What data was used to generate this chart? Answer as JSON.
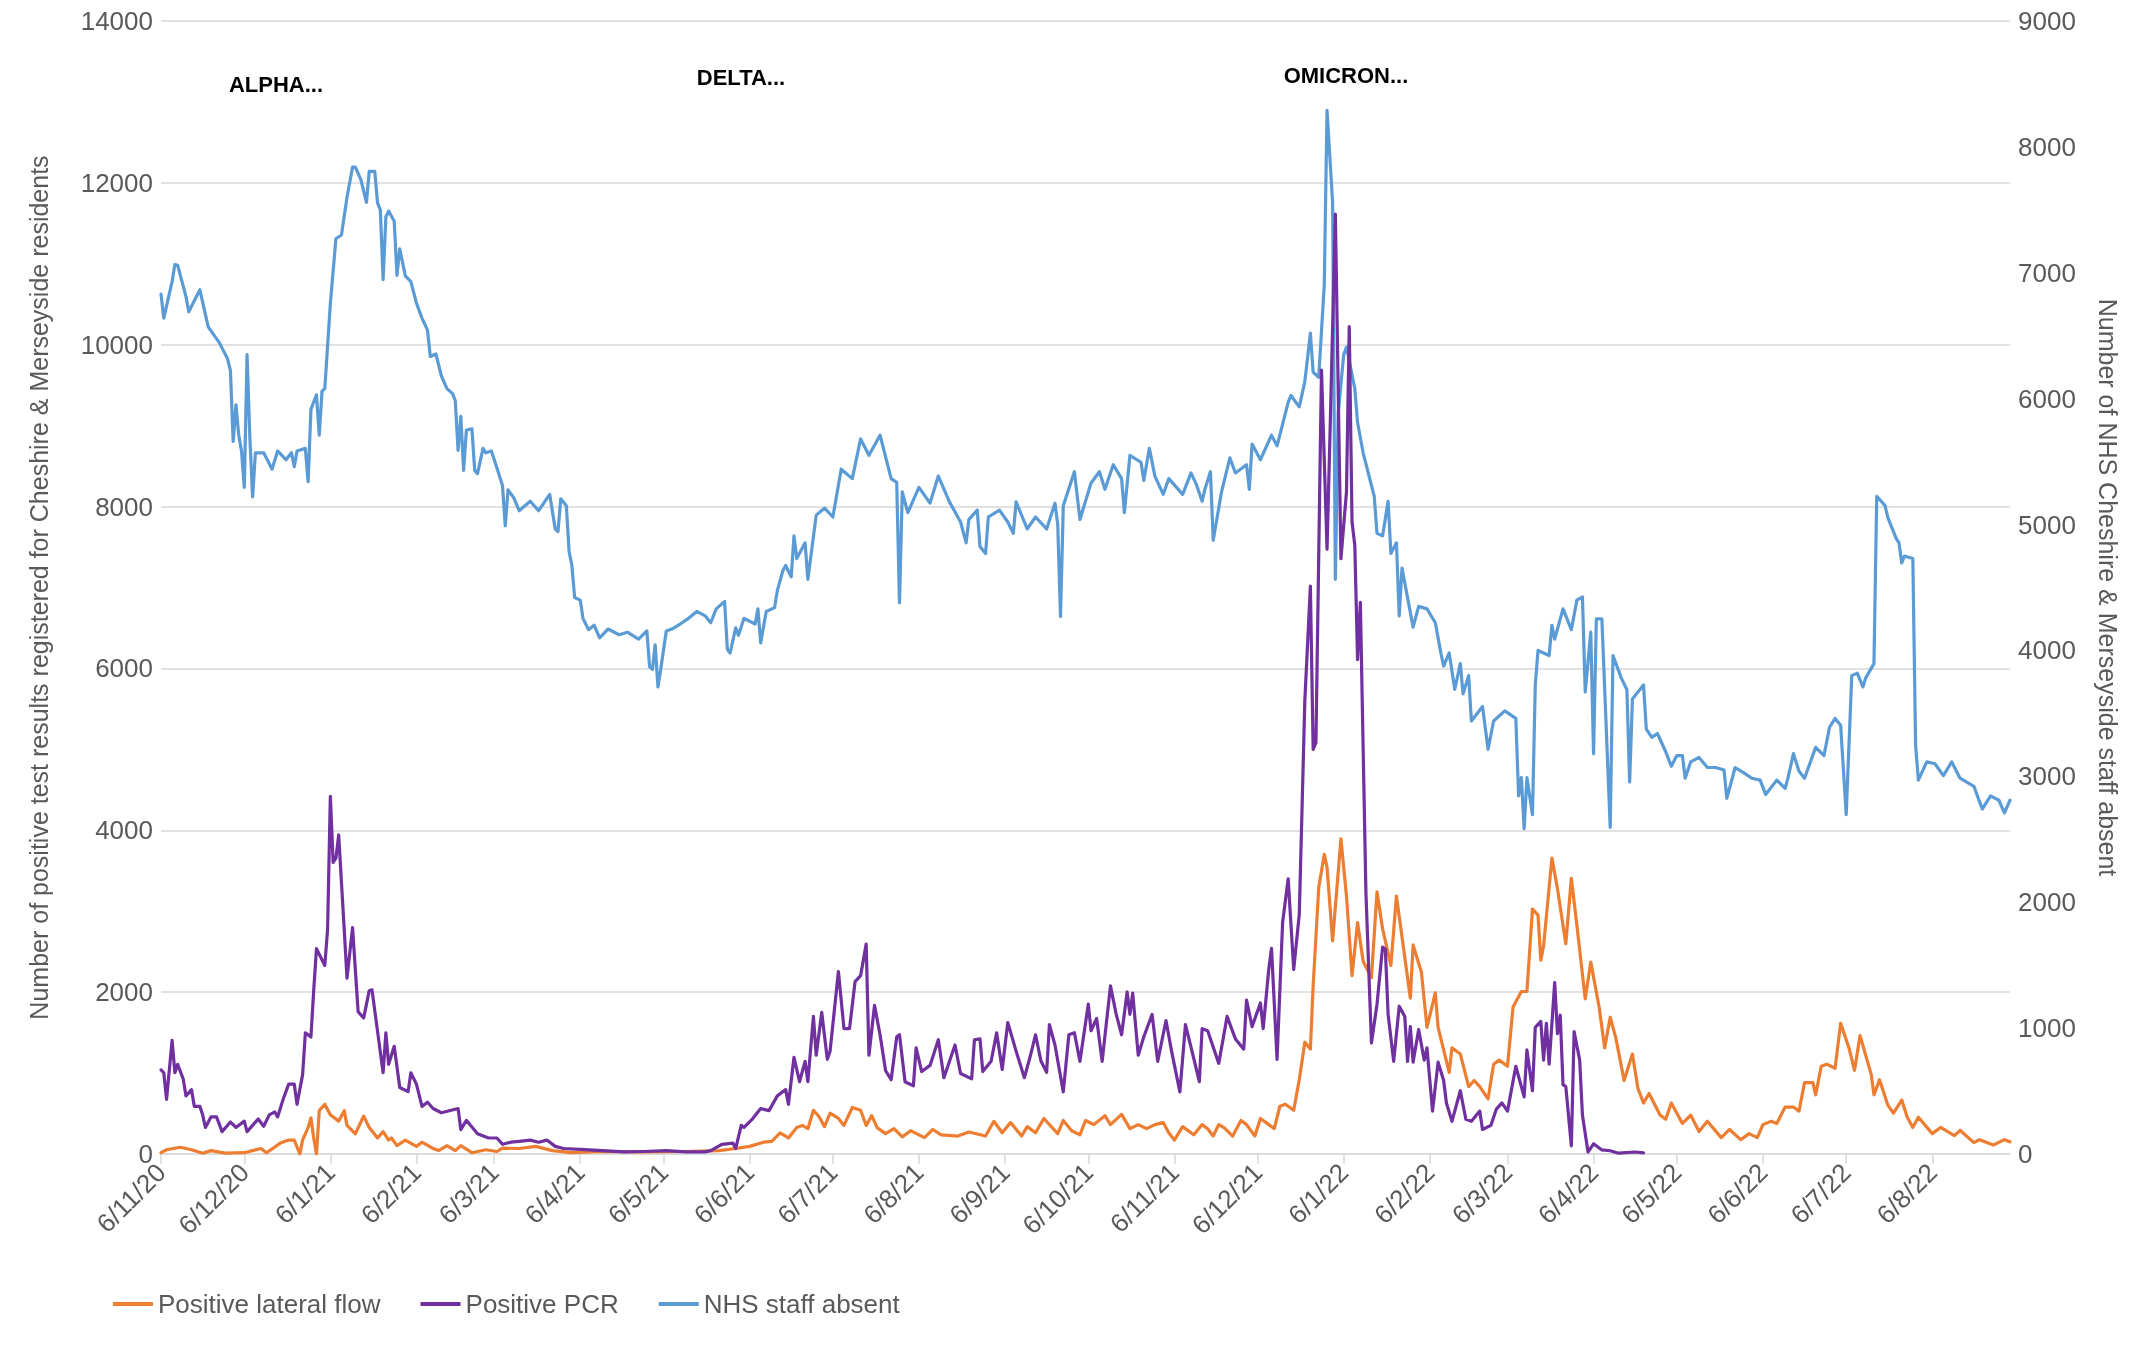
{
  "chart_data": {
    "type": "line",
    "ylabel": "Number of positive test results registered for Cheshire & Merseyside residents",
    "y2label": "Number of NHS Cheshire & Merseyside staff absent",
    "xlim": [
      "2020-11-06",
      "2022-09-03"
    ],
    "xticks": [
      {
        "value": "2020-11-06",
        "label": "6/11/20"
      },
      {
        "value": "2020-12-06",
        "label": "6/12/20"
      },
      {
        "value": "2021-01-06",
        "label": "6/1/21"
      },
      {
        "value": "2021-02-06",
        "label": "6/2/21"
      },
      {
        "value": "2021-03-06",
        "label": "6/3/21"
      },
      {
        "value": "2021-04-06",
        "label": "6/4/21"
      },
      {
        "value": "2021-05-06",
        "label": "6/5/21"
      },
      {
        "value": "2021-06-06",
        "label": "6/6/21"
      },
      {
        "value": "2021-07-06",
        "label": "6/7/21"
      },
      {
        "value": "2021-08-06",
        "label": "6/8/21"
      },
      {
        "value": "2021-09-06",
        "label": "6/9/21"
      },
      {
        "value": "2021-10-06",
        "label": "6/10/21"
      },
      {
        "value": "2021-11-06",
        "label": "6/11/21"
      },
      {
        "value": "2021-12-06",
        "label": "6/12/21"
      },
      {
        "value": "2022-01-06",
        "label": "6/1/22"
      },
      {
        "value": "2022-02-06",
        "label": "6/2/22"
      },
      {
        "value": "2022-03-06",
        "label": "6/3/22"
      },
      {
        "value": "2022-04-06",
        "label": "6/4/22"
      },
      {
        "value": "2022-05-06",
        "label": "6/5/22"
      },
      {
        "value": "2022-06-06",
        "label": "6/6/22"
      },
      {
        "value": "2022-07-06",
        "label": "6/7/22"
      },
      {
        "value": "2022-08-06",
        "label": "6/8/22"
      }
    ],
    "ylim": [
      0,
      14000
    ],
    "yticks": [
      0,
      2000,
      4000,
      6000,
      8000,
      10000,
      12000,
      14000
    ],
    "y2lim": [
      0,
      9000
    ],
    "y2ticks": [
      0,
      1000,
      2000,
      3000,
      4000,
      5000,
      6000,
      7000,
      8000,
      9000
    ],
    "grid": "y",
    "legend": "bottom left",
    "annotations": [
      "ALPHA...",
      "DELTA...",
      "OMICRON..."
    ],
    "series": [
      {
        "name": "Positive lateral flow",
        "color": "#ed7d31",
        "x": [
          "2020-11-06",
          "2020-11-08",
          "2020-11-13",
          "2020-11-17",
          "2020-11-21",
          "2020-11-24",
          "2020-11-29",
          "2020-12-06",
          "2020-12-12",
          "2020-12-14",
          "2020-12-19",
          "2020-12-22",
          "2020-12-24",
          "2020-12-26",
          "2020-12-27",
          "2020-12-29",
          "2020-12-30",
          "2020-12-31",
          "2021-01-01",
          "2021-01-02",
          "2021-01-04",
          "2021-01-06",
          "2021-01-09",
          "2021-01-11",
          "2021-01-12",
          "2021-01-15",
          "2021-01-18",
          "2021-01-20",
          "2021-01-23",
          "2021-01-25",
          "2021-01-27",
          "2021-01-28",
          "2021-01-30",
          "2021-02-02",
          "2021-02-06",
          "2021-02-08",
          "2021-02-12",
          "2021-02-14",
          "2021-02-17",
          "2021-02-20",
          "2021-02-22",
          "2021-02-26",
          "2021-03-03",
          "2021-03-07",
          "2021-03-09",
          "2021-03-15",
          "2021-03-21",
          "2021-03-27",
          "2021-04-03",
          "2021-04-14",
          "2021-04-29",
          "2021-05-14",
          "2021-05-26",
          "2021-06-01",
          "2021-06-06",
          "2021-06-11",
          "2021-06-14",
          "2021-06-17",
          "2021-06-20",
          "2021-06-23",
          "2021-06-25",
          "2021-06-27",
          "2021-06-29",
          "2021-07-01",
          "2021-07-03",
          "2021-07-05",
          "2021-07-08",
          "2021-07-10",
          "2021-07-13",
          "2021-07-16",
          "2021-07-18",
          "2021-07-20",
          "2021-07-22",
          "2021-07-25",
          "2021-07-28",
          "2021-07-31",
          "2021-08-03",
          "2021-08-08",
          "2021-08-11",
          "2021-08-14",
          "2021-08-20",
          "2021-08-24",
          "2021-08-30",
          "2021-09-02",
          "2021-09-05",
          "2021-09-08",
          "2021-09-12",
          "2021-09-14",
          "2021-09-17",
          "2021-09-20",
          "2021-09-25",
          "2021-09-27",
          "2021-09-30",
          "2021-10-03",
          "2021-10-05",
          "2021-10-08",
          "2021-10-12",
          "2021-10-14",
          "2021-10-18",
          "2021-10-21",
          "2021-10-24",
          "2021-10-27",
          "2021-10-30",
          "2021-11-02",
          "2021-11-04",
          "2021-11-06",
          "2021-11-09",
          "2021-11-13",
          "2021-11-16",
          "2021-11-18",
          "2021-11-20",
          "2021-11-22",
          "2021-11-24",
          "2021-11-27",
          "2021-11-30",
          "2021-12-02",
          "2021-12-05",
          "2021-12-07",
          "2021-12-10",
          "2021-12-12",
          "2021-12-14",
          "2021-12-16",
          "2021-12-19",
          "2021-12-21",
          "2021-12-23",
          "2021-12-25",
          "2021-12-26",
          "2021-12-28",
          "2021-12-30",
          "2021-12-31",
          "2022-01-02",
          "2022-01-05",
          "2022-01-07",
          "2022-01-09",
          "2022-01-11",
          "2022-01-13",
          "2022-01-16",
          "2022-01-18",
          "2022-01-20",
          "2022-01-23",
          "2022-01-25",
          "2022-01-27",
          "2022-01-30",
          "2022-01-31",
          "2022-02-03",
          "2022-02-05",
          "2022-02-08",
          "2022-02-09",
          "2022-02-13",
          "2022-02-14",
          "2022-02-17",
          "2022-02-20",
          "2022-02-22",
          "2022-02-24",
          "2022-02-27",
          "2022-03-01",
          "2022-03-03",
          "2022-03-06",
          "2022-03-08",
          "2022-03-11",
          "2022-03-13",
          "2022-03-15",
          "2022-03-17",
          "2022-03-18",
          "2022-03-19",
          "2022-03-22",
          "2022-03-24",
          "2022-03-27",
          "2022-03-29",
          "2022-03-31",
          "2022-04-03",
          "2022-04-05",
          "2022-04-08",
          "2022-04-10",
          "2022-04-12",
          "2022-04-14",
          "2022-04-17",
          "2022-04-20",
          "2022-04-22",
          "2022-04-24",
          "2022-04-26",
          "2022-04-30",
          "2022-05-02",
          "2022-05-04",
          "2022-05-08",
          "2022-05-11",
          "2022-05-14",
          "2022-05-17",
          "2022-05-22",
          "2022-05-25",
          "2022-05-29",
          "2022-06-01",
          "2022-06-04",
          "2022-06-06",
          "2022-06-09",
          "2022-06-11",
          "2022-06-14",
          "2022-06-17",
          "2022-06-19",
          "2022-06-21",
          "2022-06-24",
          "2022-06-25",
          "2022-06-27",
          "2022-06-29",
          "2022-07-02",
          "2022-07-04",
          "2022-07-07",
          "2022-07-09",
          "2022-07-11",
          "2022-07-15",
          "2022-07-16",
          "2022-07-18",
          "2022-07-21",
          "2022-07-23",
          "2022-07-26",
          "2022-07-28",
          "2022-07-30",
          "2022-08-01",
          "2022-08-06",
          "2022-08-09",
          "2022-08-14",
          "2022-08-16",
          "2022-08-21",
          "2022-08-23",
          "2022-08-28",
          "2022-09-01",
          "2022-09-03"
        ],
        "values": [
          16,
          52,
          83,
          52,
          10,
          42,
          10,
          16,
          68,
          16,
          135,
          172,
          172,
          0,
          172,
          328,
          447,
          198,
          0,
          536,
          614,
          484,
          406,
          536,
          354,
          250,
          468,
          328,
          198,
          276,
          172,
          198,
          104,
          172,
          94,
          146,
          68,
          42,
          104,
          42,
          104,
          16,
          52,
          31,
          73,
          68,
          94,
          42,
          16,
          31,
          26,
          31,
          42,
          68,
          94,
          146,
          156,
          260,
          198,
          328,
          353,
          313,
          540,
          464,
          338,
          504,
          439,
          353,
          575,
          540,
          353,
          474,
          323,
          252,
          313,
          212,
          288,
          202,
          303,
          237,
          222,
          272,
          222,
          404,
          262,
          388,
          222,
          338,
          262,
          439,
          252,
          414,
          288,
          237,
          414,
          363,
          474,
          363,
          489,
          313,
          363,
          313,
          363,
          388,
          262,
          171,
          338,
          237,
          363,
          313,
          222,
          363,
          323,
          222,
          414,
          363,
          222,
          439,
          363,
          313,
          590,
          615,
          540,
          918,
          1382,
          1296,
          2078,
          3289,
          3702,
          3541,
          2633,
          3894,
          3188,
          2204,
          2860,
          2381,
          2179,
          3238,
          2784,
          2330,
          3188,
          2683,
          1927,
          2583,
          2245,
          1564,
          1992,
          1564,
          1009,
          1311,
          1236,
          832,
          908,
          832,
          681,
          1110,
          1160,
          1084,
          1816,
          2008,
          2008,
          3026,
          2951,
          2396,
          2572,
          3657,
          3279,
          2598,
          3405,
          2825,
          1917,
          2371,
          1816,
          1311,
          1690,
          1438,
          908,
          1236,
          807,
          630,
          747,
          479,
          429,
          630,
          378,
          479,
          277,
          404,
          202,
          303,
          177,
          252,
          202,
          363,
          404,
          378,
          580,
          580,
          530,
          883,
          883,
          731,
          1084,
          1110,
          1059,
          1614,
          1311,
          1034,
          1463,
          984,
          731,
          918,
          605,
          504,
          666,
          454,
          328,
          454,
          252,
          328,
          227,
          293,
          141,
          177,
          111,
          177,
          151
        ]
      },
      {
        "name": "Positive PCR",
        "color": "#7030a0",
        "x": [
          "2020-11-06",
          "2020-11-07",
          "2020-11-08",
          "2020-11-10",
          "2020-11-11",
          "2020-11-12",
          "2020-11-14",
          "2020-11-15",
          "2020-11-17",
          "2020-11-18",
          "2020-11-20",
          "2020-11-21",
          "2020-11-22",
          "2020-11-24",
          "2020-11-26",
          "2020-11-28",
          "2020-12-01",
          "2020-12-03",
          "2020-12-06",
          "2020-12-07",
          "2020-12-09",
          "2020-12-11",
          "2020-12-13",
          "2020-12-15",
          "2020-12-17",
          "2020-12-18",
          "2020-12-20",
          "2020-12-22",
          "2020-12-24",
          "2020-12-25",
          "2020-12-27",
          "2020-12-28",
          "2020-12-30",
          "2020-12-31",
          "2021-01-01",
          "2021-01-04",
          "2021-01-05",
          "2021-01-06",
          "2021-01-07",
          "2021-01-08",
          "2021-01-09",
          "2021-01-11",
          "2021-01-12",
          "2021-01-14",
          "2021-01-16",
          "2021-01-18",
          "2021-01-20",
          "2021-01-21",
          "2021-01-25",
          "2021-01-26",
          "2021-01-27",
          "2021-01-29",
          "2021-01-31",
          "2021-02-03",
          "2021-02-04",
          "2021-02-06",
          "2021-02-08",
          "2021-02-10",
          "2021-02-12",
          "2021-02-15",
          "2021-02-21",
          "2021-02-22",
          "2021-02-24",
          "2021-02-28",
          "2021-03-04",
          "2021-03-07",
          "2021-03-09",
          "2021-03-12",
          "2021-03-15",
          "2021-03-19",
          "2021-03-22",
          "2021-03-25",
          "2021-03-28",
          "2021-03-31",
          "2021-04-06",
          "2021-04-14",
          "2021-04-22",
          "2021-04-29",
          "2021-05-07",
          "2021-05-14",
          "2021-05-21",
          "2021-05-23",
          "2021-05-27",
          "2021-05-31",
          "2021-06-01",
          "2021-06-03",
          "2021-06-04",
          "2021-06-07",
          "2021-06-10",
          "2021-06-13",
          "2021-06-16",
          "2021-06-19",
          "2021-06-20",
          "2021-06-22",
          "2021-06-24",
          "2021-06-26",
          "2021-06-27",
          "2021-06-29",
          "2021-06-30",
          "2021-07-02",
          "2021-07-04",
          "2021-07-05",
          "2021-07-08",
          "2021-07-10",
          "2021-07-12",
          "2021-07-14",
          "2021-07-16",
          "2021-07-18",
          "2021-07-19",
          "2021-07-21",
          "2021-07-23",
          "2021-07-25",
          "2021-07-27",
          "2021-07-29",
          "2021-07-30",
          "2021-08-01",
          "2021-08-04",
          "2021-08-05",
          "2021-08-07",
          "2021-08-10",
          "2021-08-13",
          "2021-08-15",
          "2021-08-19",
          "2021-08-21",
          "2021-08-25",
          "2021-08-26",
          "2021-08-28",
          "2021-08-29",
          "2021-09-01",
          "2021-09-03",
          "2021-09-05",
          "2021-09-07",
          "2021-09-10",
          "2021-09-13",
          "2021-09-15",
          "2021-09-17",
          "2021-09-19",
          "2021-09-21",
          "2021-09-22",
          "2021-09-24",
          "2021-09-27",
          "2021-09-29",
          "2021-10-01",
          "2021-10-03",
          "2021-10-06",
          "2021-10-07",
          "2021-10-09",
          "2021-10-11",
          "2021-10-14",
          "2021-10-16",
          "2021-10-18",
          "2021-10-20",
          "2021-10-21",
          "2021-10-22",
          "2021-10-24",
          "2021-10-26",
          "2021-10-29",
          "2021-10-31",
          "2021-11-03",
          "2021-11-05",
          "2021-11-08",
          "2021-11-10",
          "2021-11-12",
          "2021-11-15",
          "2021-11-16",
          "2021-11-18",
          "2021-11-22",
          "2021-11-25",
          "2021-11-28",
          "2021-12-01",
          "2021-12-02",
          "2021-12-04",
          "2021-12-07",
          "2021-12-08",
          "2021-12-10",
          "2021-12-11",
          "2021-12-13",
          "2021-12-15",
          "2021-12-17",
          "2021-12-19",
          "2021-12-21",
          "2021-12-22",
          "2021-12-23",
          "2021-12-25",
          "2021-12-26",
          "2021-12-27",
          "2021-12-29",
          "2021-12-31",
          "2022-01-01",
          "2022-01-03",
          "2022-01-05",
          "2022-01-07",
          "2022-01-08",
          "2022-01-09",
          "2022-01-10",
          "2022-01-11",
          "2022-01-12",
          "2022-01-14",
          "2022-01-16",
          "2022-01-18",
          "2022-01-20",
          "2022-01-21",
          "2022-01-22",
          "2022-01-24",
          "2022-01-26",
          "2022-01-28",
          "2022-01-29",
          "2022-01-30",
          "2022-01-31",
          "2022-02-02",
          "2022-02-04",
          "2022-02-05",
          "2022-02-07",
          "2022-02-09",
          "2022-02-11",
          "2022-02-12",
          "2022-02-14",
          "2022-02-17",
          "2022-02-19",
          "2022-02-21",
          "2022-02-24",
          "2022-02-25",
          "2022-02-28",
          "2022-03-02",
          "2022-03-04",
          "2022-03-06",
          "2022-03-09",
          "2022-03-10",
          "2022-03-12",
          "2022-03-13",
          "2022-03-15",
          "2022-03-16",
          "2022-03-18",
          "2022-03-19",
          "2022-03-20",
          "2022-03-21",
          "2022-03-23",
          "2022-03-24",
          "2022-03-25",
          "2022-03-26",
          "2022-03-27",
          "2022-03-29",
          "2022-03-30",
          "2022-04-01",
          "2022-04-02",
          "2022-04-04",
          "2022-04-06",
          "2022-04-09",
          "2022-04-12",
          "2022-04-15",
          "2022-04-21",
          "2022-04-24"
        ],
        "values": [
          1040,
          1004,
          676,
          1404,
          1004,
          1108,
          926,
          718,
          796,
          588,
          588,
          484,
          328,
          458,
          458,
          276,
          395,
          328,
          406,
          276,
          354,
          432,
          343,
          484,
          520,
          458,
          676,
          863,
          863,
          614,
          978,
          1498,
          1446,
          2018,
          2538,
          2330,
          2772,
          4420,
          3604,
          3656,
          3942,
          2772,
          2174,
          2798,
          1758,
          1680,
          2018,
          2028,
          1004,
          1498,
          1108,
          1331,
          822,
          770,
          1004,
          863,
          588,
          640,
          562,
          510,
          562,
          302,
          416,
          250,
          198,
          198,
          120,
          146,
          156,
          172,
          146,
          172,
          94,
          68,
          57,
          42,
          26,
          31,
          42,
          26,
          26,
          42,
          120,
          135,
          68,
          354,
          328,
          432,
          562,
          536,
          718,
          796,
          614,
          1195,
          893,
          1145,
          893,
          1700,
          1220,
          1750,
          1170,
          1271,
          2255,
          1549,
          1549,
          2129,
          2204,
          2593,
          1220,
          1836,
          1473,
          1029,
          918,
          1448,
          1473,
          893,
          842,
          1311,
          1019,
          1095,
          1412,
          943,
          1347,
          994,
          928,
          1412,
          1422,
          1019,
          1145,
          1498,
          1044,
          1624,
          1271,
          943,
          1195,
          1473,
          1145,
          1009,
          1599,
          1347,
          767,
          1473,
          1498,
          1145,
          1851,
          1523,
          1675,
          1145,
          2078,
          1735,
          1473,
          2002,
          1725,
          1987,
          1220,
          1448,
          1725,
          1145,
          1649,
          1271,
          767,
          1599,
          1321,
          893,
          1549,
          1523,
          1120,
          1700,
          1422,
          1296,
          1902,
          1574,
          1866,
          1549,
          2280,
          2542,
          1170,
          2860,
          3400,
          2280,
          2961,
          4272,
          5600,
          7018,
          5000,
          5083,
          9686,
          7473,
          8802,
          11613,
          7355,
          8180,
          10224,
          7809,
          7523,
          6109,
          6816,
          3238,
          1372,
          1851,
          2557,
          2532,
          1725,
          1145,
          1826,
          1700,
          1145,
          1574,
          1135,
          1538,
          1160,
          1311,
          530,
          1135,
          908,
          631,
          404,
          782,
          429,
          404,
          530,
          303,
          353,
          555,
          631,
          530,
          1084,
          958,
          706,
          1286,
          782,
          1564,
          1639,
          1160,
          1614,
          1110,
          2118,
          1488,
          1715,
          857,
          832,
          101,
          1513,
          1160,
          479,
          25,
          126,
          50,
          40,
          10,
          25,
          15
        ]
      },
      {
        "name": "NHS staff absent",
        "color": "#5b9bd5",
        "axis": "y2",
        "x": [
          "2020-11-06",
          "2020-11-07",
          "2020-11-10",
          "2020-11-11",
          "2020-11-12",
          "2020-11-15",
          "2020-11-16",
          "2020-11-20",
          "2020-11-23",
          "2020-11-27",
          "2020-11-30",
          "2020-12-01",
          "2020-12-02",
          "2020-12-03",
          "2020-12-04",
          "2020-12-05",
          "2020-12-06",
          "2020-12-07",
          "2020-12-08",
          "2020-12-09",
          "2020-12-10",
          "2020-12-13",
          "2020-12-16",
          "2020-12-18",
          "2020-12-21",
          "2020-12-23",
          "2020-12-24",
          "2020-12-25",
          "2020-12-28",
          "2020-12-29",
          "2020-12-30",
          "2021-01-01",
          "2021-01-02",
          "2021-01-03",
          "2021-01-04",
          "2021-01-06",
          "2021-01-08",
          "2021-01-10",
          "2021-01-12",
          "2021-01-14",
          "2021-01-15",
          "2021-01-17",
          "2021-01-19",
          "2021-01-20",
          "2021-01-22",
          "2021-01-23",
          "2021-01-24",
          "2021-01-25",
          "2021-01-26",
          "2021-01-27",
          "2021-01-29",
          "2021-01-30",
          "2021-01-31",
          "2021-02-02",
          "2021-02-04",
          "2021-02-06",
          "2021-02-08",
          "2021-02-10",
          "2021-02-11",
          "2021-02-13",
          "2021-02-15",
          "2021-02-17",
          "2021-02-19",
          "2021-02-20",
          "2021-02-21",
          "2021-02-22",
          "2021-02-23",
          "2021-02-24",
          "2021-02-26",
          "2021-02-27",
          "2021-02-28",
          "2021-03-02",
          "2021-03-03",
          "2021-03-05",
          "2021-03-07",
          "2021-03-09",
          "2021-03-10",
          "2021-03-11",
          "2021-03-13",
          "2021-03-15",
          "2021-03-19",
          "2021-03-22",
          "2021-03-26",
          "2021-03-28",
          "2021-03-29",
          "2021-03-30",
          "2021-04-01",
          "2021-04-02",
          "2021-04-03",
          "2021-04-04",
          "2021-04-06",
          "2021-04-07",
          "2021-04-09",
          "2021-04-11",
          "2021-04-13",
          "2021-04-16",
          "2021-04-20",
          "2021-04-23",
          "2021-04-27",
          "2021-04-30",
          "2021-05-01",
          "2021-05-02",
          "2021-05-03",
          "2021-05-04",
          "2021-05-05",
          "2021-05-07",
          "2021-05-09",
          "2021-05-12",
          "2021-05-15",
          "2021-05-18",
          "2021-05-21",
          "2021-05-23",
          "2021-05-25",
          "2021-05-28",
          "2021-05-29",
          "2021-05-30",
          "2021-06-01",
          "2021-06-02",
          "2021-06-04",
          "2021-06-08",
          "2021-06-09",
          "2021-06-10",
          "2021-06-12",
          "2021-06-15",
          "2021-06-16",
          "2021-06-18",
          "2021-06-19",
          "2021-06-21",
          "2021-06-22",
          "2021-06-23",
          "2021-06-26",
          "2021-06-27",
          "2021-06-30",
          "2021-07-03",
          "2021-07-06",
          "2021-07-09",
          "2021-07-13",
          "2021-07-16",
          "2021-07-19",
          "2021-07-23",
          "2021-07-27",
          "2021-07-29",
          "2021-07-30",
          "2021-07-31",
          "2021-08-02",
          "2021-08-06",
          "2021-08-10",
          "2021-08-13",
          "2021-08-17",
          "2021-08-21",
          "2021-08-23",
          "2021-08-24",
          "2021-08-27",
          "2021-08-28",
          "2021-08-30",
          "2021-08-31",
          "2021-09-04",
          "2021-09-07",
          "2021-09-09",
          "2021-09-10",
          "2021-09-14",
          "2021-09-17",
          "2021-09-21",
          "2021-09-24",
          "2021-09-25",
          "2021-09-26",
          "2021-09-27",
          "2021-10-01",
          "2021-10-03",
          "2021-10-07",
          "2021-10-10",
          "2021-10-12",
          "2021-10-15",
          "2021-10-18",
          "2021-10-19",
          "2021-10-21",
          "2021-10-25",
          "2021-10-26",
          "2021-10-28",
          "2021-10-30",
          "2021-11-02",
          "2021-11-04",
          "2021-11-09",
          "2021-11-12",
          "2021-11-14",
          "2021-11-16",
          "2021-11-17",
          "2021-11-19",
          "2021-11-20",
          "2021-11-23",
          "2021-11-26",
          "2021-11-28",
          "2021-12-02",
          "2021-12-03",
          "2021-12-04",
          "2021-12-07",
          "2021-12-11",
          "2021-12-13",
          "2021-12-17",
          "2021-12-18",
          "2021-12-21",
          "2021-12-23",
          "2021-12-25",
          "2021-12-26",
          "2021-12-28",
          "2021-12-30",
          "2021-12-31",
          "2022-01-02",
          "2022-01-03",
          "2022-01-04",
          "2022-01-06",
          "2022-01-07",
          "2022-01-10",
          "2022-01-11",
          "2022-01-13",
          "2022-01-17",
          "2022-01-18",
          "2022-01-20",
          "2022-01-22",
          "2022-01-23",
          "2022-01-25",
          "2022-01-26",
          "2022-01-27",
          "2022-01-31",
          "2022-02-02",
          "2022-02-05",
          "2022-02-08",
          "2022-02-10",
          "2022-02-11",
          "2022-02-13",
          "2022-02-15",
          "2022-02-17",
          "2022-02-18",
          "2022-02-20",
          "2022-02-21",
          "2022-02-25",
          "2022-02-27",
          "2022-03-01",
          "2022-03-05",
          "2022-03-09",
          "2022-03-10",
          "2022-03-11",
          "2022-03-12",
          "2022-03-13",
          "2022-03-15",
          "2022-03-16",
          "2022-03-17",
          "2022-03-21",
          "2022-03-22",
          "2022-03-23",
          "2022-03-26",
          "2022-03-29",
          "2022-03-31",
          "2022-04-02",
          "2022-04-03",
          "2022-04-05",
          "2022-04-06",
          "2022-04-07",
          "2022-04-09",
          "2022-04-12",
          "2022-04-13",
          "2022-04-16",
          "2022-04-18",
          "2022-04-19",
          "2022-04-20",
          "2022-04-24",
          "2022-04-25",
          "2022-04-27",
          "2022-04-29",
          "2022-05-02",
          "2022-05-04",
          "2022-05-06",
          "2022-05-08",
          "2022-05-09",
          "2022-05-11",
          "2022-05-14",
          "2022-05-17",
          "2022-05-20",
          "2022-05-23",
          "2022-05-24",
          "2022-05-27",
          "2022-05-30",
          "2022-06-02",
          "2022-06-05",
          "2022-06-07",
          "2022-06-11",
          "2022-06-14",
          "2022-06-15",
          "2022-06-17",
          "2022-06-19",
          "2022-06-21",
          "2022-06-25",
          "2022-06-28",
          "2022-06-30",
          "2022-07-02",
          "2022-07-04",
          "2022-07-06",
          "2022-07-08",
          "2022-07-10",
          "2022-07-12",
          "2022-07-13",
          "2022-07-16",
          "2022-07-17",
          "2022-07-20",
          "2022-07-21",
          "2022-07-24",
          "2022-07-25",
          "2022-07-26",
          "2022-07-27",
          "2022-07-30",
          "2022-07-31",
          "2022-08-01",
          "2022-08-04",
          "2022-08-07",
          "2022-08-10",
          "2022-08-13",
          "2022-08-16",
          "2022-08-21",
          "2022-08-24",
          "2022-08-27",
          "2022-08-30",
          "2022-09-01",
          "2022-09-03"
        ],
        "values": [
          6830,
          6640,
          6930,
          7065,
          7060,
          6810,
          6690,
          6865,
          6570,
          6445,
          6315,
          6225,
          5660,
          5950,
          5710,
          5585,
          5295,
          6350,
          5695,
          5220,
          5570,
          5570,
          5440,
          5585,
          5515,
          5570,
          5460,
          5585,
          5605,
          5340,
          5915,
          6030,
          5710,
          6060,
          6080,
          6755,
          7270,
          7300,
          7600,
          7840,
          7840,
          7740,
          7560,
          7805,
          7805,
          7555,
          7500,
          6945,
          7445,
          7490,
          7410,
          6980,
          7190,
          6975,
          6930,
          6760,
          6640,
          6545,
          6335,
          6355,
          6180,
          6080,
          6040,
          5985,
          5590,
          5860,
          5430,
          5750,
          5760,
          5430,
          5405,
          5605,
          5570,
          5585,
          5450,
          5310,
          4990,
          5275,
          5215,
          5110,
          5185,
          5110,
          5240,
          4965,
          4945,
          5205,
          5150,
          4785,
          4675,
          4420,
          4400,
          4255,
          4165,
          4200,
          4100,
          4170,
          4125,
          4145,
          4090,
          4155,
          3870,
          3850,
          4045,
          3710,
          3850,
          4155,
          4170,
          4210,
          4255,
          4310,
          4275,
          4220,
          4330,
          4390,
          4010,
          3980,
          4180,
          4120,
          4255,
          4210,
          4330,
          4060,
          4310,
          4340,
          4475,
          4635,
          4675,
          4585,
          4910,
          4730,
          4855,
          4565,
          5075,
          5130,
          5060,
          5440,
          5365,
          5680,
          5550,
          5710,
          5365,
          5335,
          4380,
          5260,
          5095,
          5295,
          5170,
          5385,
          5180,
          5020,
          4855,
          5040,
          5115,
          4825,
          4770,
          5060,
          5115,
          5020,
          4930,
          5180,
          4965,
          5060,
          4965,
          5170,
          5000,
          4270,
          5150,
          5420,
          5040,
          5330,
          5420,
          5280,
          5475,
          5365,
          5095,
          5550,
          5495,
          5350,
          5605,
          5385,
          5240,
          5365,
          5240,
          5410,
          5315,
          5185,
          5280,
          5420,
          4875,
          5260,
          5530,
          5410,
          5475,
          5280,
          5640,
          5515,
          5710,
          5625,
          5970,
          6025,
          5935,
          6135,
          6520,
          6210,
          6170,
          6900,
          8290,
          7560,
          4565,
          5880,
          6350,
          6410,
          6080,
          5810,
          5570,
          5225,
          4930,
          4910,
          5185,
          4770,
          4855,
          4275,
          4655,
          4185,
          4350,
          4330,
          4220,
          3980,
          3875,
          3980,
          3690,
          3895,
          3655,
          3800,
          3440,
          3555,
          3215,
          3440,
          3520,
          3460,
          2845,
          2990,
          2585,
          2990,
          2695,
          3725,
          4000,
          3960,
          4200,
          4090,
          4330,
          4165,
          4400,
          4425,
          3670,
          4145,
          3180,
          4250,
          4250,
          2595,
          3960,
          3780,
          3690,
          2955,
          3615,
          3725,
          3375,
          3310,
          3340,
          3195,
          3080,
          3165,
          3165,
          2985,
          3115,
          3150,
          3070,
          3070,
          3050,
          2825,
          3070,
          3030,
          2985,
          2970,
          2855,
          2970,
          2905,
          2985,
          3180,
          3040,
          2985,
          3230,
          3165,
          3390,
          3460,
          3405,
          2695,
          3800,
          3820,
          3710,
          3780,
          3895,
          5225,
          5150,
          5055,
          4890,
          4855,
          4695,
          4750,
          4730,
          3245,
          2970,
          3115,
          3100,
          3005,
          3115,
          2985,
          2920,
          2740,
          2845,
          2810,
          2710,
          2810
        ]
      }
    ]
  }
}
